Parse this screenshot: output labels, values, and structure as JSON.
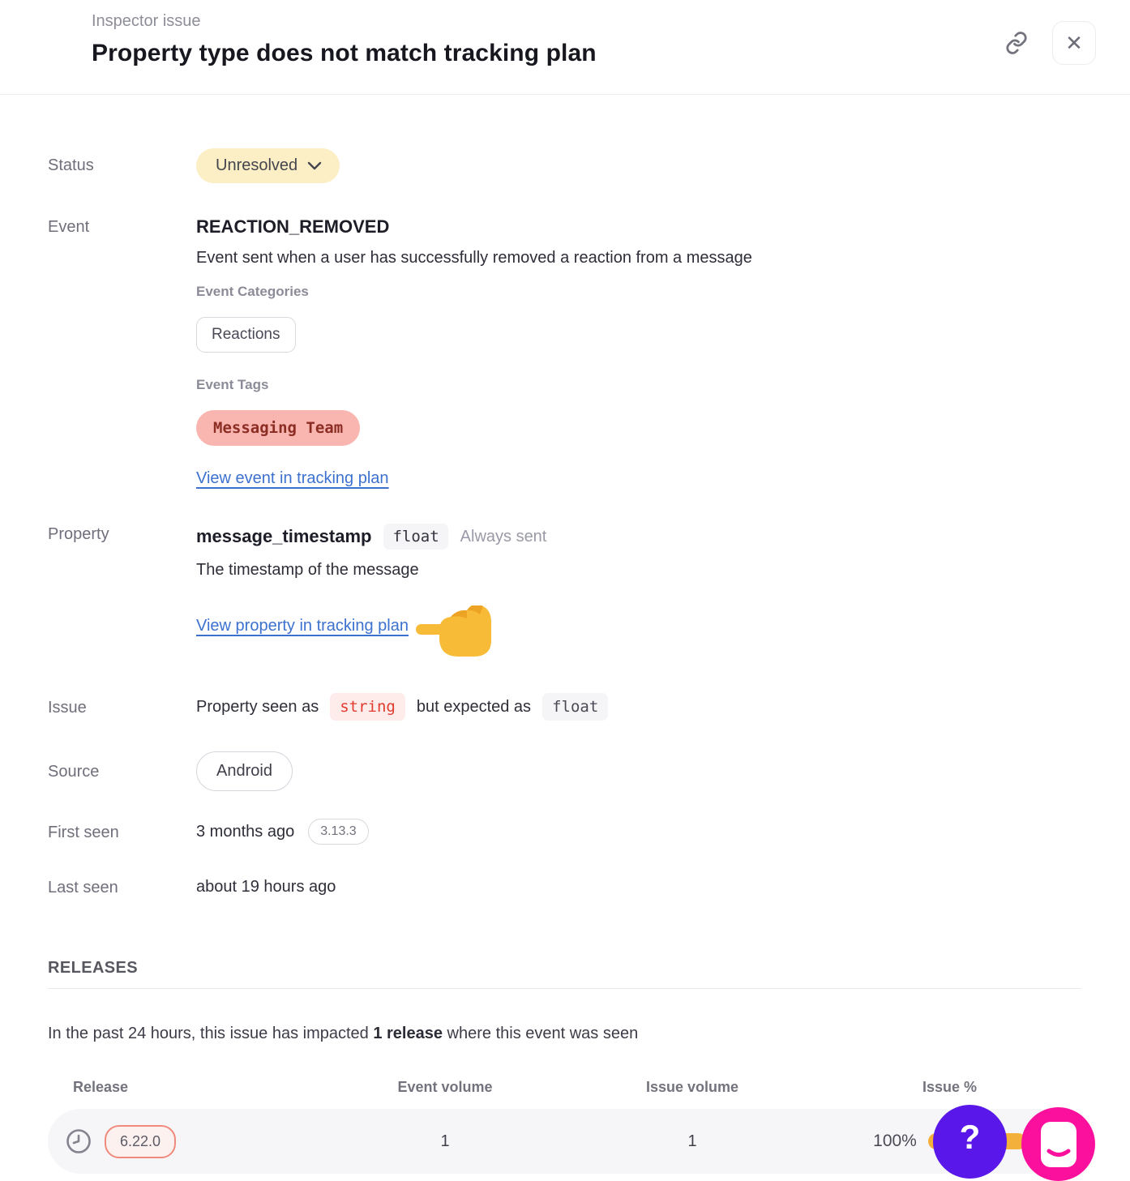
{
  "header": {
    "eyebrow": "Inspector issue",
    "title": "Property type does not match tracking plan"
  },
  "icons": {
    "close_glyph": "✕",
    "help_glyph": "?"
  },
  "fields": {
    "status_label": "Status",
    "status_value": "Unresolved",
    "event_label": "Event",
    "event_name": "REACTION_REMOVED",
    "event_description": "Event sent when a user has successfully removed a reaction from a message",
    "event_categories_label": "Event Categories",
    "event_category": "Reactions",
    "event_tags_label": "Event Tags",
    "event_tag": "Messaging Team",
    "event_link": "View event in tracking plan",
    "property_label": "Property",
    "property_name": "message_timestamp",
    "property_type": "float",
    "property_presence": "Always sent",
    "property_description": "The timestamp of the message",
    "property_link": "View property in tracking plan",
    "issue_label": "Issue",
    "issue_text_before": "Property seen as",
    "issue_seen_type": "string",
    "issue_text_after": "but expected as",
    "issue_expected_type": "float",
    "source_label": "Source",
    "source_value": "Android",
    "first_seen_label": "First seen",
    "first_seen_value": "3 months ago",
    "first_seen_version": "3.13.3",
    "last_seen_label": "Last seen",
    "last_seen_value": "about 19 hours ago"
  },
  "releases": {
    "section_title": "RELEASES",
    "summary_prefix": "In the past 24 hours, this issue has impacted ",
    "summary_bold": "1 release",
    "summary_suffix": " where this event was seen",
    "table": {
      "headers": [
        "Release",
        "Event volume",
        "Issue volume",
        "Issue %"
      ],
      "rows": [
        {
          "release": "6.22.0",
          "event_volume": "1",
          "issue_volume": "1",
          "issue_pct_label": "100%",
          "issue_pct_value": 100
        }
      ]
    }
  },
  "colors": {
    "status_pill_bg": "#fcefc5",
    "tag_pill_bg": "#f9b6b0",
    "tag_pill_text": "#8c2d24",
    "link_blue": "#3d71cf",
    "error_red": "#e23a2e",
    "error_bg": "#fdecea",
    "code_bg": "#f5f5f8",
    "progress_amber": "#f3b13c",
    "release_pill_border": "#f08a7c",
    "help_bubble_purple": "#5a17e9",
    "chat_bubble_pink": "#fa109c"
  }
}
